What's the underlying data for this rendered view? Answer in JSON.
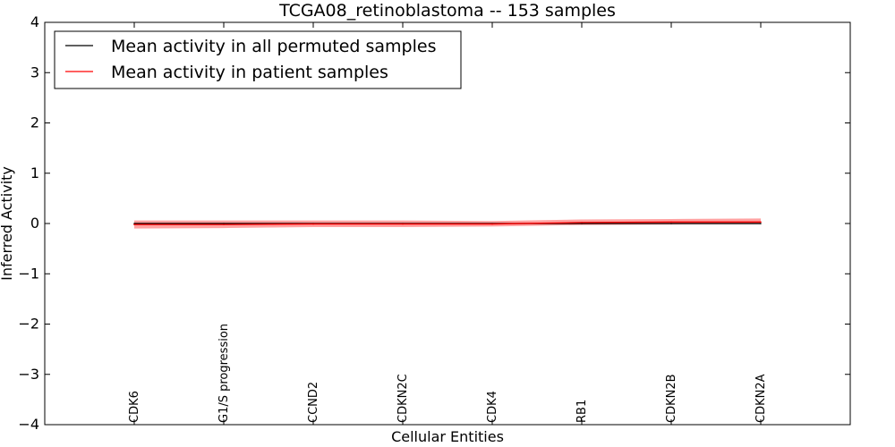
{
  "chart_data": {
    "type": "line",
    "title": "TCGA08_retinoblastoma -- 153 samples",
    "xlabel": "Cellular Entities",
    "ylabel": "Inferred Activity",
    "ylim": [
      -4,
      4
    ],
    "yticks": [
      {
        "value": 4,
        "label": "4"
      },
      {
        "value": 3,
        "label": "3"
      },
      {
        "value": 2,
        "label": "2"
      },
      {
        "value": 1,
        "label": "1"
      },
      {
        "value": 0,
        "label": "0"
      },
      {
        "value": -1,
        "label": "−1"
      },
      {
        "value": -2,
        "label": "−2"
      },
      {
        "value": -3,
        "label": "−3"
      },
      {
        "value": -4,
        "label": "−4"
      }
    ],
    "categories": [
      "CDK6",
      "G1/S progression",
      "CCND2",
      "CDKN2C",
      "CDK4",
      "RB1",
      "CDKN2B",
      "CDKN2A"
    ],
    "legend_position": "top-left",
    "series": [
      {
        "name": "Mean activity in all permuted samples",
        "color": "#000000",
        "values": [
          0,
          0,
          0,
          0,
          0,
          0,
          0,
          0
        ],
        "band_lower": [
          -0.02,
          -0.02,
          -0.02,
          -0.02,
          -0.02,
          -0.02,
          -0.02,
          -0.02
        ],
        "band_upper": [
          0.02,
          0.02,
          0.02,
          0.02,
          0.02,
          0.02,
          0.02,
          0.02
        ],
        "band_color": "#888888"
      },
      {
        "name": "Mean activity in patient samples",
        "color": "#ff0000",
        "values": [
          -0.02,
          -0.02,
          -0.01,
          -0.01,
          -0.01,
          0.02,
          0.03,
          0.03
        ],
        "band_lower": [
          -0.1,
          -0.09,
          -0.07,
          -0.07,
          -0.06,
          -0.03,
          -0.02,
          -0.01
        ],
        "band_upper": [
          0.06,
          0.06,
          0.06,
          0.06,
          0.05,
          0.08,
          0.09,
          0.1
        ],
        "band_color": "#ff5555"
      }
    ]
  }
}
